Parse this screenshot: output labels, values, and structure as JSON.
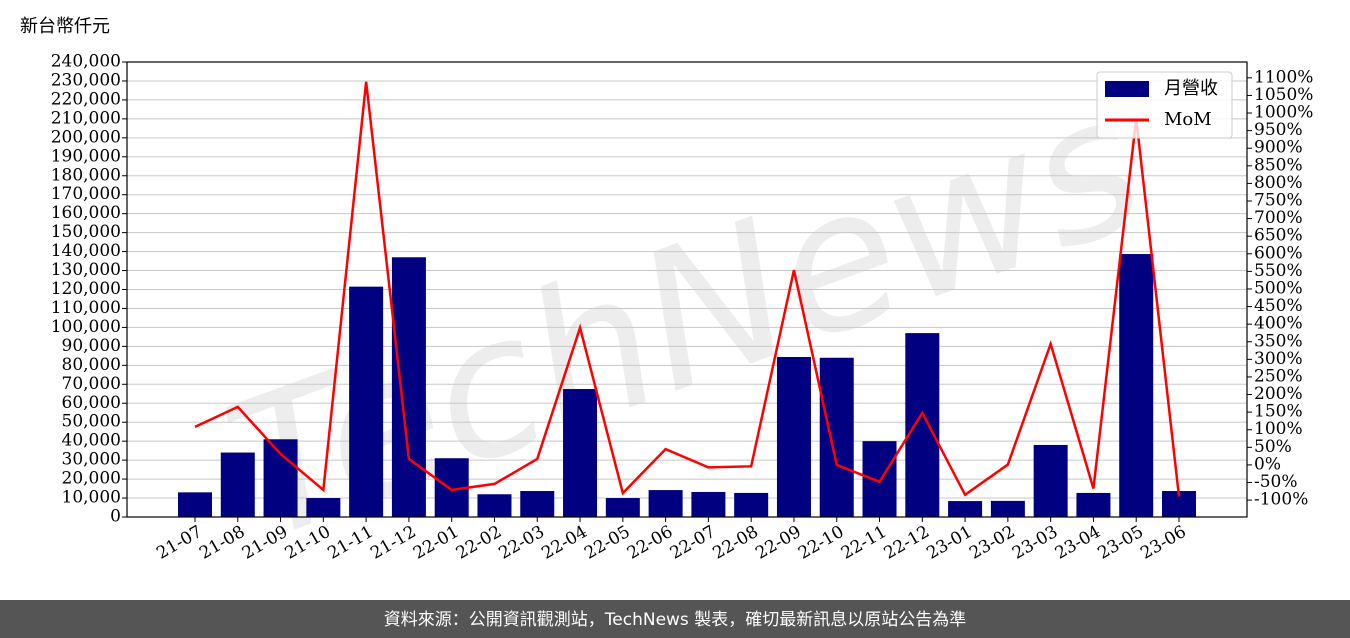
{
  "unit_label": "新台幣仟元",
  "footer": "資料來源：公開資訊觀測站，TechNews 製表，確切最新訊息以原站公告為準",
  "watermark": "TechNews",
  "chart_data": {
    "type": "bar-line",
    "categories": [
      "21-07",
      "21-08",
      "21-09",
      "21-10",
      "21-11",
      "21-12",
      "22-01",
      "22-02",
      "22-03",
      "22-04",
      "22-05",
      "22-06",
      "22-07",
      "22-08",
      "22-09",
      "22-10",
      "22-11",
      "22-12",
      "23-01",
      "23-02",
      "23-03",
      "23-04",
      "23-05",
      "23-06"
    ],
    "series": [
      {
        "name": "月營收",
        "type": "bar",
        "color": "#000080",
        "values": [
          13000,
          34000,
          41000,
          10000,
          121500,
          137000,
          31000,
          12000,
          13700,
          67500,
          10000,
          14200,
          13200,
          12700,
          84400,
          84000,
          40000,
          97000,
          8400,
          8500,
          38000,
          12700,
          138700,
          13700
        ]
      },
      {
        "name": "MoM",
        "type": "line",
        "color": "#ff0000",
        "axis": "y2",
        "values": [
          108,
          165,
          31,
          -71,
          1089,
          17,
          -71,
          -54,
          17,
          390,
          -80,
          45,
          -7,
          -4,
          554,
          0,
          -48,
          148,
          -85,
          1,
          344,
          -67,
          984,
          -90
        ]
      }
    ],
    "ylim": [
      0,
      240000
    ],
    "yticks": [
      0,
      {
        "value": 10000,
        "label": "10,000"
      },
      {
        "value": 20000,
        "label": "20,000"
      },
      {
        "value": 30000,
        "label": "30,000"
      },
      {
        "value": 40000,
        "label": "40,000"
      },
      {
        "value": 50000,
        "label": "50,000"
      },
      {
        "value": 60000,
        "label": "60,000"
      },
      {
        "value": 70000,
        "label": "70,000"
      },
      {
        "value": 80000,
        "label": "80,000"
      },
      {
        "value": 90000,
        "label": "90,000"
      },
      {
        "value": 100000,
        "label": "100,000"
      },
      {
        "value": 110000,
        "label": "110,000"
      },
      {
        "value": 120000,
        "label": "120,000"
      },
      {
        "value": 130000,
        "label": "130,000"
      },
      {
        "value": 140000,
        "label": "140,000"
      },
      {
        "value": 150000,
        "label": "150,000"
      },
      {
        "value": 160000,
        "label": "160,000"
      },
      {
        "value": 170000,
        "label": "170,000"
      },
      {
        "value": 180000,
        "label": "180,000"
      },
      {
        "value": 190000,
        "label": "190,000"
      },
      {
        "value": 200000,
        "label": "200,000"
      },
      {
        "value": 210000,
        "label": "210,000"
      },
      {
        "value": 220000,
        "label": "220,000"
      },
      {
        "value": 230000,
        "label": "230,000"
      },
      {
        "value": 240000,
        "label": "240,000"
      }
    ],
    "y2lim": [
      -148,
      1145
    ],
    "y2ticks": [
      {
        "value": -100,
        "label": "-100%"
      },
      {
        "value": -50,
        "label": "-50%"
      },
      {
        "value": 0,
        "label": "0%"
      },
      {
        "value": 50,
        "label": "50%"
      },
      {
        "value": 100,
        "label": "100%"
      },
      {
        "value": 150,
        "label": "150%"
      },
      {
        "value": 200,
        "label": "200%"
      },
      {
        "value": 250,
        "label": "250%"
      },
      {
        "value": 300,
        "label": "300%"
      },
      {
        "value": 350,
        "label": "350%"
      },
      {
        "value": 400,
        "label": "400%"
      },
      {
        "value": 450,
        "label": "450%"
      },
      {
        "value": 500,
        "label": "500%"
      },
      {
        "value": 550,
        "label": "550%"
      },
      {
        "value": 600,
        "label": "600%"
      },
      {
        "value": 650,
        "label": "650%"
      },
      {
        "value": 700,
        "label": "700%"
      },
      {
        "value": 750,
        "label": "750%"
      },
      {
        "value": 800,
        "label": "800%"
      },
      {
        "value": 850,
        "label": "850%"
      },
      {
        "value": 900,
        "label": "900%"
      },
      {
        "value": 950,
        "label": "950%"
      },
      {
        "value": 1000,
        "label": "1000%"
      },
      {
        "value": 1050,
        "label": "1050%"
      },
      {
        "value": 1100,
        "label": "1100%"
      }
    ],
    "grid": true,
    "legend": "upper right"
  }
}
